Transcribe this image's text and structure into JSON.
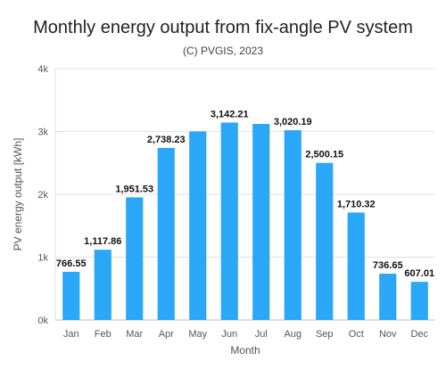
{
  "chart_data": {
    "type": "bar",
    "title": "Monthly energy output from fix-angle PV system",
    "subtitle": "(C) PVGIS, 2023",
    "xlabel": "Month",
    "ylabel": "PV energy output [kWh]",
    "ylim": [
      0,
      4000
    ],
    "yticks": [
      0,
      1000,
      2000,
      3000,
      4000
    ],
    "ytick_labels": [
      "0k",
      "1k",
      "2k",
      "3k",
      "4k"
    ],
    "grid": true,
    "bar_color": "#2aa7f6",
    "categories": [
      "Jan",
      "Feb",
      "Mar",
      "Apr",
      "May",
      "Jun",
      "Jul",
      "Aug",
      "Sep",
      "Oct",
      "Nov",
      "Dec"
    ],
    "values": [
      766.55,
      1117.86,
      1951.53,
      2738.23,
      3000,
      3142.21,
      3120,
      3020.19,
      2500.15,
      1710.32,
      736.65,
      607.01
    ],
    "data_labels": [
      "766.55",
      "1,117.86",
      "1,951.53",
      "2,738.23",
      "",
      "3,142.21",
      "",
      "3,020.19",
      "2,500.15",
      "1,710.32",
      "736.65",
      "607.01"
    ]
  }
}
